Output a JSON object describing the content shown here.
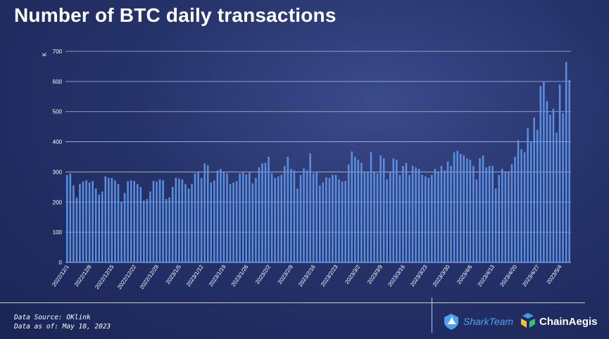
{
  "title": "Number of BTC daily transactions",
  "footer": {
    "source": "Data Source: OKlink",
    "as_of": "Data as of: May 10, 2023"
  },
  "logos": [
    {
      "name": "SharkTeam",
      "icon": "shark-fin-icon",
      "color": "#4aa3f0"
    },
    {
      "name": "ChainAegis",
      "icon": "chainaegis-icon",
      "colors": [
        "#3aa0e0",
        "#f2c230",
        "#3cc06a"
      ]
    }
  ],
  "colors": {
    "bar": "#5b8fe0",
    "grid": "#c9d0ea",
    "background": "#26336b"
  },
  "chart_data": {
    "type": "bar",
    "ylabel": "K",
    "ylim": [
      0,
      700
    ],
    "yticks": [
      0,
      100,
      200,
      300,
      400,
      500,
      600,
      700
    ],
    "grid": true,
    "tick_labels": [
      "2022/12/1",
      "2022/12/8",
      "2022/12/15",
      "2022/12/22",
      "2022/12/29",
      "2023/1/5",
      "2023/1/12",
      "2023/1/19",
      "2023/1/26",
      "2023/2/2",
      "2023/2/9",
      "2023/2/16",
      "2023/2/23",
      "2023/3/2",
      "2023/3/9",
      "2023/3/16",
      "2023/3/23",
      "2023/3/30",
      "2023/4/6",
      "2023/4/13",
      "2023/4/20",
      "2023/4/27",
      "2023/5/4"
    ],
    "tick_every": 7,
    "values": [
      290,
      295,
      255,
      215,
      260,
      268,
      272,
      265,
      270,
      245,
      225,
      235,
      285,
      280,
      280,
      272,
      260,
      200,
      230,
      270,
      272,
      270,
      260,
      250,
      205,
      210,
      235,
      270,
      268,
      275,
      272,
      210,
      215,
      250,
      280,
      278,
      275,
      260,
      245,
      260,
      295,
      300,
      280,
      328,
      322,
      265,
      272,
      305,
      310,
      300,
      295,
      260,
      265,
      270,
      295,
      298,
      292,
      298,
      262,
      280,
      315,
      328,
      330,
      350,
      295,
      280,
      285,
      290,
      320,
      350,
      310,
      305,
      245,
      290,
      312,
      305,
      362,
      295,
      300,
      255,
      265,
      282,
      280,
      290,
      290,
      275,
      268,
      270,
      325,
      368,
      350,
      340,
      330,
      300,
      300,
      365,
      300,
      295,
      355,
      345,
      275,
      300,
      345,
      340,
      290,
      320,
      330,
      290,
      320,
      315,
      310,
      290,
      285,
      280,
      290,
      310,
      300,
      320,
      305,
      335,
      320,
      365,
      370,
      360,
      355,
      345,
      340,
      320,
      275,
      345,
      355,
      315,
      320,
      320,
      245,
      290,
      310,
      300,
      300,
      325,
      350,
      405,
      375,
      365,
      445,
      400,
      480,
      440,
      585,
      600,
      535,
      490,
      510,
      430,
      590,
      495,
      665,
      605
    ]
  }
}
